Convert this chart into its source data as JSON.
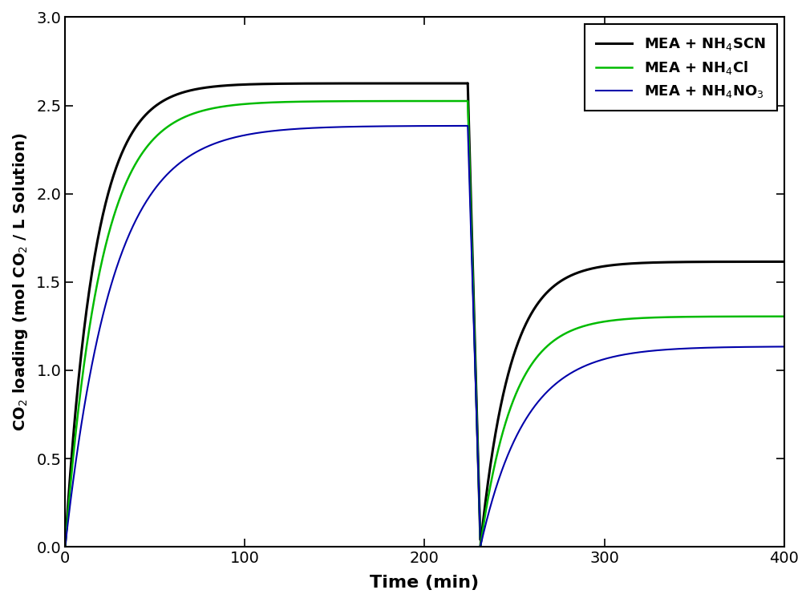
{
  "title": "",
  "xlabel": "Time (min)",
  "ylabel": "CO$_2$ loading (mol CO$_2$ / L Solution)",
  "xlim": [
    0,
    400
  ],
  "ylim": [
    0.0,
    3.0
  ],
  "xticks": [
    0,
    100,
    200,
    300,
    400
  ],
  "yticks": [
    0.0,
    0.5,
    1.0,
    1.5,
    2.0,
    2.5,
    3.0
  ],
  "legend_labels": [
    "MEA + NH$_4$SCN",
    "MEA + NH$_4$Cl",
    "MEA + NH$_4$NO$_3$"
  ],
  "colors": [
    "#000000",
    "#00bb00",
    "#0000aa"
  ],
  "linewidths": [
    2.2,
    1.8,
    1.5
  ],
  "absorption": {
    "t_end": 224,
    "t_drop_end": 231,
    "plateaus": [
      2.625,
      2.525,
      2.385
    ],
    "rates": [
      0.06,
      0.05,
      0.038
    ]
  },
  "reabsorption": {
    "t_start": 231,
    "t_end": 400,
    "plateaus": [
      1.615,
      1.305,
      1.135
    ],
    "rates": [
      0.06,
      0.055,
      0.04
    ]
  },
  "drop_y_end": 0.04,
  "background": "#ffffff"
}
